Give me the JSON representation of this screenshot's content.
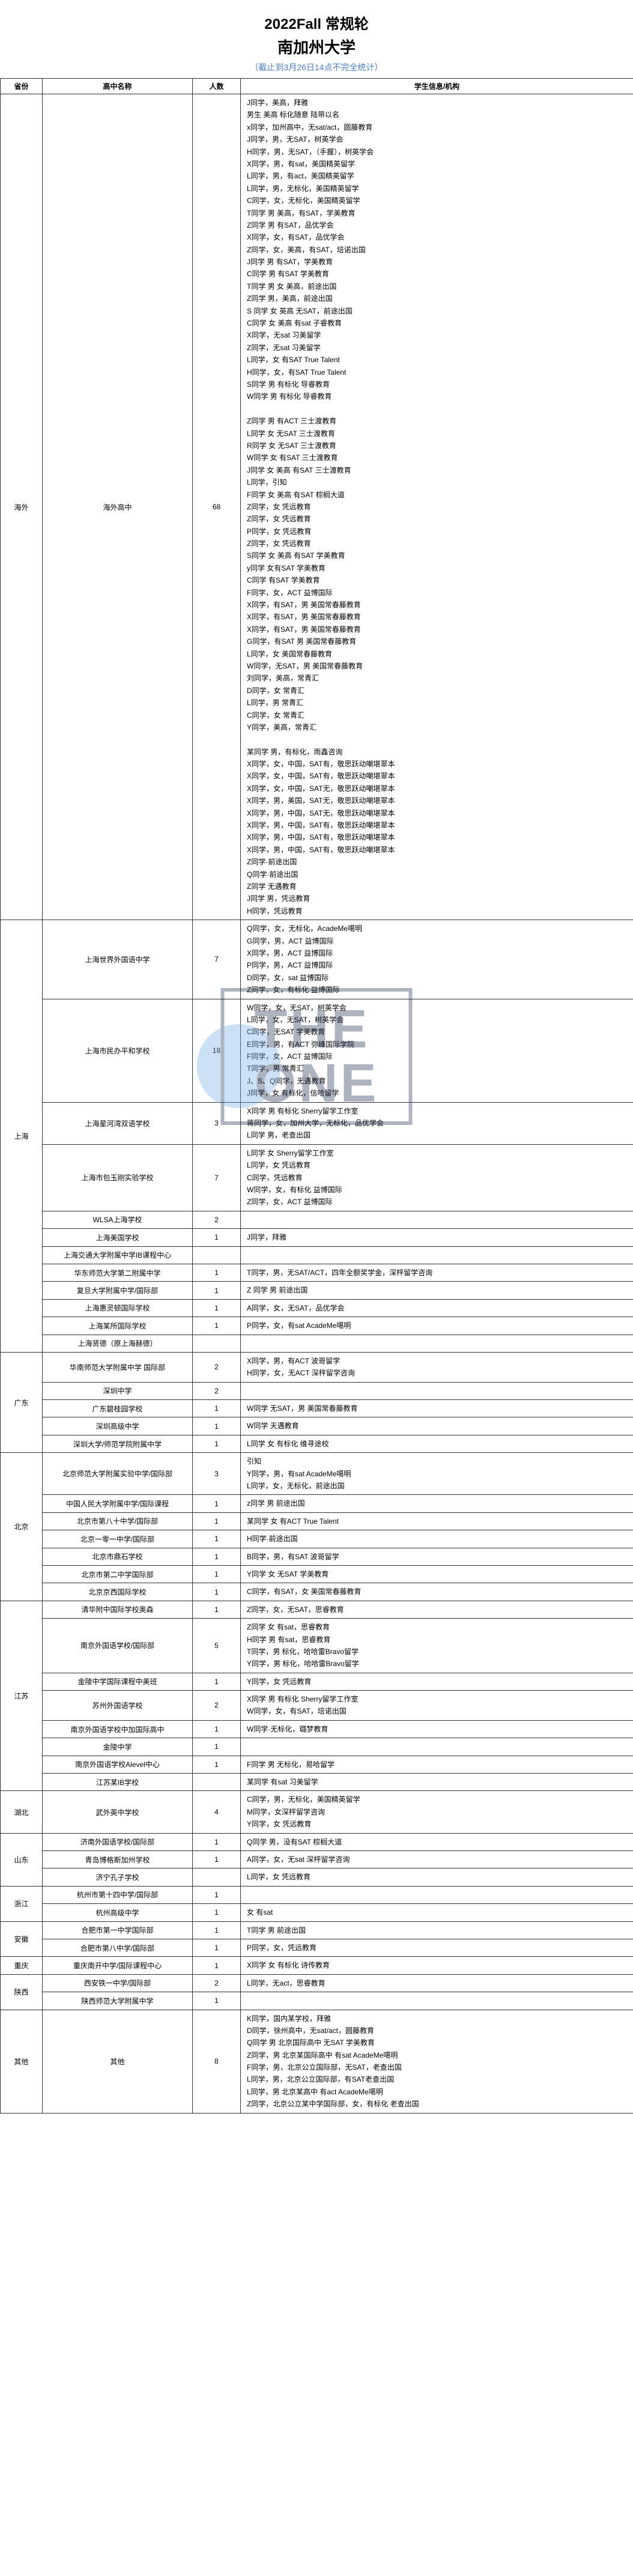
{
  "header": {
    "title1": "2022Fall 常规轮",
    "title2": "南加州大学",
    "subtitle": "（截止到3月26日14点不完全统计）"
  },
  "columns": [
    "省份",
    "高中名称",
    "人数",
    "学生信息/机构"
  ],
  "watermark": {
    "line1": "THE",
    "line2": "ONE"
  },
  "rows": [
    {
      "province": "海外",
      "school": "海外高中",
      "count": "68",
      "details": [
        "J同学，美高，拜雅",
        "男生 美高 标化随意 陆带以名",
        "x同学，加州高中，无sat/act，圆藤教育",
        "J同学，男，无SAT，树英学会",
        "H同学，男，无SAT，（手握），树英学会",
        "X同学，男，有sat，美国精英留学",
        "L同学，男，有act，美国精英留学",
        "L同学，男，无标化，美国精英留学",
        "C同学，女，无标化，美国精英留学",
        "T同学 男 美高，有SAT，学美教育",
        "Z同学 男 有SAT，品优学会",
        "X同学，女，有SAT，品优学会",
        "Z同学，女，美高，有SAT，培诺出国",
        "J同学 男 有SAT，学美教育",
        "C同学 男 有SAT 学美教育",
        "T同学 男 女 美高，前途出国",
        "Z同学 男，美高，前途出国",
        "S 同学 女 英高 无SAT，前途出国",
        "C同学 女 美高 有sat 子睿教育",
        "X同学，无sat 习美留学",
        "Z同学，无sat 习美留学",
        "L同学，女 有SAT True Talent",
        "H同学，女，有SAT True Talent",
        "S同学 男 有标化 导睿教育",
        "W同学 男 有标化 导睿教育",
        "",
        "Z同学 男 有ACT 三士渡教育",
        "L同学 女 无SAT 三士渡教育",
        "R同学 女 无SAT 三士渡教育",
        "W同学 女 有SAT 三士渡教育",
        "J同学 女 美高 有SAT 三士渡教育",
        "L同学，引知",
        "F同学 女 美高 有SAT 棕榈大道",
        "Z同学，女 凭远教育",
        "Z同学，女 凭远教育",
        "P同学，女 凭远教育",
        "Z同学，女 凭远教育",
        "S同学 女 美高 有SAT 学美教育",
        "y同学 女有SAT 学美教育",
        "C同学 有SAT 学美教育",
        "F同学，女，ACT 益博国际",
        "X同学，有SAT，男 美国常春藤教育",
        "X同学，有SAT，男 美国常春藤教育",
        "X同学，有SAT，男 美国常春藤教育",
        "G同学，有SAT 男 美国常春藤教育",
        "L同学，女 美国常春藤教育",
        "W同学，无SAT，男 美国常春藤教育",
        "刘同学，美高，常青汇",
        "D同学，女 常青汇",
        "L同学，男 常青汇",
        "C同学，女 常青汇",
        "Y同学，美高，常青汇",
        "",
        "某同学 男，有标化，雨鑫咨询",
        "X同学，女，中国，SAT有，敬思跃动嘲堪翠本",
        "X同学，女，中国，SAT有，敬思跃动嘲堪翠本",
        "X同学，女，中国，SAT无，敬思跃动嘲堪翠本",
        "X同学，男，美国，SAT无，敬思跃动嘲堪翠本",
        "X同学，男，中国，SAT无，敬思跃动嘲堪翠本",
        "X同学，男，中国，SAT有，敬思跃动嘲堪翠本",
        "X同学，男，中国，SAT有，敬思跃动嘲堪翠本",
        "X同学，男，中国，SAT有，敬思跃动嘲堪翠本",
        "Z同学·前途出国",
        "Q同学·前途出国",
        "Z同学 无遇教育",
        "J同学 男，凭远教育",
        "H同学，凭远教育"
      ]
    },
    {
      "province": "上海",
      "subrows": [
        {
          "school": "上海世界外国语中学",
          "count": "7",
          "details": [
            "Q同学，女，无标化，AcadeMe噶明",
            "G同学，男，ACT 益博国际",
            "X同学，男，ACT 益博国际",
            "P同学，男，ACT 益博国际",
            "D同学，女，sat 益博国际",
            "Z同学，女，有标化 益博国际"
          ]
        },
        {
          "school": "上海市民办平和学校",
          "count": "18",
          "details": [
            "W同学，女，无SAT，树英学会",
            "L同学，女，无SAT，树英学会",
            "C同学，无SAT 学美教育",
            "E同学，男，有ACT 弥峰国际学院",
            "F同学，女，ACT 益博国际",
            "T同学，男 常青汇",
            "J、S、Q同学，无遇教育",
            "J同学，女 有标化，信哈留学"
          ]
        },
        {
          "school": "上海星河湾双语学校",
          "count": "3",
          "details": [
            "X同学 男 有标化 Sherry留学工作室",
            "蒋同学，女，加州大学，无标化，品优学会",
            "L同学 男，老查出国"
          ]
        },
        {
          "school": "上海市包玉刚实验学校",
          "count": "7",
          "details": [
            "L同学 女 Sherry留学工作室",
            "L同学，女 凭远教育",
            "C同学，凭远教育",
            "W同学，女，有标化 益博国际",
            "Z同学，女，ACT 益博国际"
          ]
        },
        {
          "school": "WLSA上海学校",
          "count": "2",
          "details": []
        },
        {
          "school": "上海美国学校",
          "count": "1",
          "details": [
            "J同学，拜雅"
          ]
        },
        {
          "school": "上海交通大学附属中学IB课程中心",
          "count": "",
          "details": []
        },
        {
          "school": "华东师范大学第二附属中学",
          "count": "1",
          "details": [
            "T同学，男，无SAT/ACT，四年全额奖学金，深枰留学咨询"
          ]
        },
        {
          "school": "复旦大学附属中学/国际部",
          "count": "1",
          "details": [
            "Z 同学 男 前途出国"
          ]
        },
        {
          "school": "上海惠灵顿国际学校",
          "count": "1",
          "details": [
            "A同学，女，无SAT，品优学会"
          ]
        },
        {
          "school": "上海某所国际学校",
          "count": "1",
          "details": [
            "P同学，女，有sat AcadeMe噶明"
          ]
        },
        {
          "school": "上海贤德（原上海赫德）",
          "count": "",
          "details": []
        }
      ]
    },
    {
      "province": "广东",
      "subrows": [
        {
          "school": "华南师范大学附属中学 国际部",
          "count": "2",
          "details": [
            "X同学，男，有ACT 波哥留学",
            "H同学，女，无ACT 深枰留学咨询"
          ]
        },
        {
          "school": "深圳中学",
          "count": "2",
          "details": []
        },
        {
          "school": "广东碧桂园学校",
          "count": "1",
          "details": [
            "W同学 无SAT，男 美国常春藤教育"
          ]
        },
        {
          "school": "深圳高级中学",
          "count": "1",
          "details": [
            "W同学 天遇教育"
          ]
        },
        {
          "school": "深圳大学/师范学院附属中学",
          "count": "1",
          "details": [
            "L同学 女 有标化 维寻途校"
          ]
        }
      ]
    },
    {
      "province": "北京",
      "subrows": [
        {
          "school": "北京师范大学附属实验中学/国际部",
          "count": "3",
          "details": [
            "引知",
            "Y同学，男，有sat AcadeMe噶明",
            "L同学，女，无标化，前途出国"
          ]
        },
        {
          "school": "中国人民大学附属中学/国际课程",
          "count": "1",
          "details": [
            "z同学 男 前途出国"
          ]
        },
        {
          "school": "北京市第八十中学/国际部",
          "count": "1",
          "details": [
            "某同学 女 有ACT True Talent"
          ]
        },
        {
          "school": "北京一零一中学/国际部",
          "count": "1",
          "details": [
            "H同学·前途出国"
          ]
        },
        {
          "school": "北京市鼎石学校",
          "count": "1",
          "details": [
            "B同学，男，有SAT 波哥留学"
          ]
        },
        {
          "school": "北京市第二中学国际部",
          "count": "1",
          "details": [
            "Y同学 女 无SAT 学美教育"
          ]
        },
        {
          "school": "北京京西国际学校",
          "count": "1",
          "details": [
            "C同学，有SAT，女 美国常春藤教育"
          ]
        }
      ]
    },
    {
      "province": "江苏",
      "subrows": [
        {
          "school": "清华附中国际学校奥森",
          "count": "1",
          "details": [
            "Z同学，女，无SAT，思睿教育"
          ]
        },
        {
          "school": "南京外国语学校/国际部",
          "count": "5",
          "details": [
            "Z同学 女 有sat，思睿教育",
            "H同学 男 有sat，思睿教育",
            "T同学，男 标化，哈哈雷Bravo留学",
            "Y同学，男 标化，哈哈雷Bravo留学"
          ]
        },
        {
          "school": "金陵中学国际课程中美班",
          "count": "1",
          "details": [
            "Y同学，女 凭远教育"
          ]
        },
        {
          "school": "苏州外国语学校",
          "count": "2",
          "details": [
            "X同学 男 有标化 Sherry留学工作室",
            "W同学，女，有SAT，培诺出国"
          ]
        },
        {
          "school": "南京外国语学校中加国际高中",
          "count": "1",
          "details": [
            "W同学·无标化，璐梦教育"
          ]
        },
        {
          "school": "金陵中学",
          "count": "1",
          "details": []
        },
        {
          "school": "南京外国语学校Alevel中心",
          "count": "1",
          "details": [
            "F同学 男 无标化，易哈留学"
          ]
        },
        {
          "school": "江苏某IB学校",
          "count": "",
          "details": [
            "某同学 有sat 习美留学"
          ]
        }
      ]
    },
    {
      "province": "湖北",
      "subrows": [
        {
          "school": "武外英中学校",
          "count": "4",
          "details": [
            "C同学，男，无标化，美国精英留学",
            "M同学，女深枰留学咨询",
            "Y同学，女 凭远教育"
          ]
        }
      ]
    },
    {
      "province": "山东",
      "subrows": [
        {
          "school": "济南外国语学校/国际部",
          "count": "1",
          "details": [
            "Q同学 男，没有SAT 棕榈大道"
          ]
        },
        {
          "school": "青岛博格斯加州学校",
          "count": "1",
          "details": [
            "A同学，女，无sat 深枰留学咨询"
          ]
        },
        {
          "school": "济宁孔子学校",
          "count": "",
          "details": [
            "L同学，女 凭远教育"
          ]
        }
      ]
    },
    {
      "province": "浙江",
      "subrows": [
        {
          "school": "杭州市第十四中学/国际部",
          "count": "1",
          "details": []
        },
        {
          "school": "杭州高级中学",
          "count": "1",
          "details": [
            "女 有sat"
          ]
        }
      ]
    },
    {
      "province": "安徽",
      "subrows": [
        {
          "school": "合肥市第一中学国际部",
          "count": "1",
          "details": [
            "T同学 男 前途出国"
          ]
        },
        {
          "school": "合肥市第八中学/国际部",
          "count": "1",
          "details": [
            "P同学，女，凭远教育"
          ]
        }
      ]
    },
    {
      "province": "重庆",
      "subrows": [
        {
          "school": "重庆南开中学/国际课程中心",
          "count": "1",
          "details": [
            "X同学 女 有标化 诗传教育"
          ]
        }
      ]
    },
    {
      "province": "陕西",
      "subrows": [
        {
          "school": "西安铁一中学/国际部",
          "count": "2",
          "details": [
            "L同学，无act，思睿教育"
          ]
        },
        {
          "school": "陕西师范大学附属中学",
          "count": "1",
          "details": []
        }
      ]
    },
    {
      "province": "其他",
      "subrows": [
        {
          "school": "其他",
          "count": "8",
          "details": [
            "K同学，国内某学校，拜雅",
            "D同学，徐州高中，无sat/act，圆藤教育",
            "Q同学 男 北京国际高中 无SAT 学美教育",
            "Z同学，男 北京某国际高中 有sat AcadeMe噶明",
            "F同学，男，北京公立国际部，无SAT，老查出国",
            "L同学，男，北京公立国际部，有SAT老查出国",
            "L同学，男 北京某高中 有act AcadeMe噶明",
            "Z同学，北京公立某中学国际部，女，有标化 老查出国"
          ]
        }
      ]
    }
  ]
}
